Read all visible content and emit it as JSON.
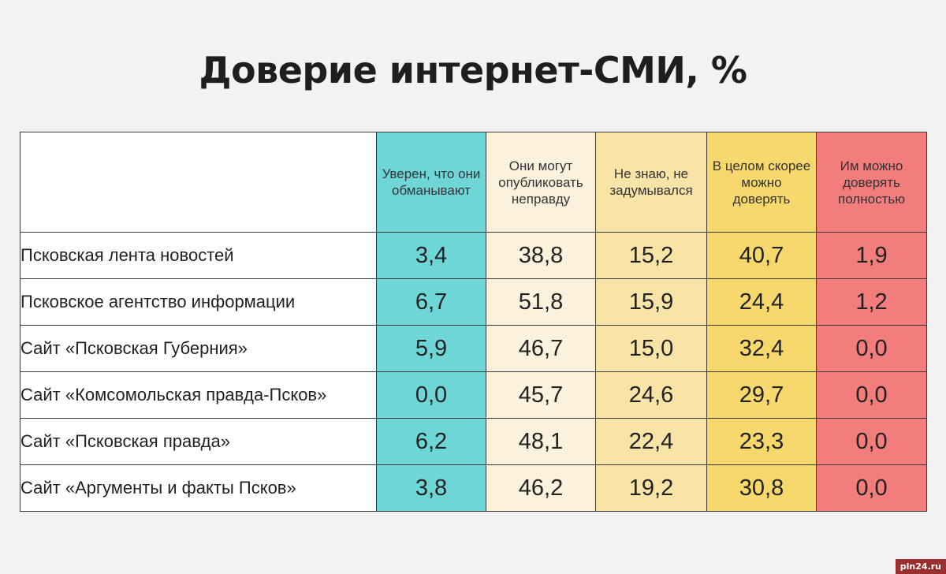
{
  "title": "Доверие интернет-СМИ, %",
  "watermark": "pln24.ru",
  "chart_data": {
    "type": "table",
    "title": "Доверие интернет-СМИ, %",
    "columns": [
      "Уверен, что они обманывают",
      "Они могут опубликовать неправду",
      "Не знаю, не задумывался",
      "В целом скорее можно доверять",
      "Им можно доверять полностью"
    ],
    "column_colors": [
      "#6fd6d8",
      "#fbf1dd",
      "#f8e4a7",
      "#f6d86c",
      "#f37c7c"
    ],
    "rows": [
      {
        "name": "Псковская лента новостей",
        "values": [
          "3,4",
          "38,8",
          "15,2",
          "40,7",
          "1,9"
        ]
      },
      {
        "name": "Псковское агентство информации",
        "values": [
          "6,7",
          "51,8",
          "15,9",
          "24,4",
          "1,2"
        ]
      },
      {
        "name": "Сайт «Псковская Губерния»",
        "values": [
          "5,9",
          "46,7",
          "15,0",
          "32,4",
          "0,0"
        ]
      },
      {
        "name": "Сайт «Комсомольская правда-Псков»",
        "values": [
          "0,0",
          "45,7",
          "24,6",
          "29,7",
          "0,0"
        ]
      },
      {
        "name": "Сайт «Псковская правда»",
        "values": [
          "6,2",
          "48,1",
          "22,4",
          "23,3",
          "0,0"
        ]
      },
      {
        "name": "Сайт «Аргументы и факты Псков»",
        "values": [
          "3,8",
          "46,2",
          "19,2",
          "30,8",
          "0,0"
        ]
      }
    ]
  }
}
